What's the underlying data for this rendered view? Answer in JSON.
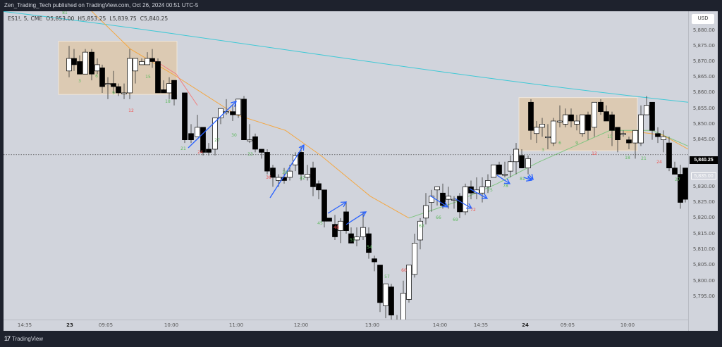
{
  "header": {
    "published_text": "Zen_Trading_Tech published on TradingView.com, Oct 26, 2024 00:51 UTC-5"
  },
  "legend": {
    "symbol": "ES1!, 5, CME",
    "open": "O5,853.00",
    "high": "H5,853.25",
    "low": "L5,839.75",
    "close": "C5,840.25"
  },
  "price_scale": {
    "currency": "USD",
    "labels": [
      "5,880.00",
      "5,875.00",
      "5,870.00",
      "5,865.00",
      "5,860.00",
      "5,855.00",
      "5,850.00",
      "5,845.00",
      "5,840.25",
      "5,835.00",
      "5,830.00",
      "5,825.00",
      "5,820.00",
      "5,815.00",
      "5,810.00",
      "5,805.00",
      "5,800.00",
      "5,795.00"
    ],
    "current_price": "5,840.25",
    "ghost_price": "5,835.00"
  },
  "time_scale": {
    "labels": [
      "14:35",
      "23",
      "09:05",
      "10:00",
      "11:00",
      "12:00",
      "13:00",
      "14:00",
      "14:35",
      "24",
      "09:05",
      "10:00"
    ]
  },
  "footer": {
    "brand": "TradingView",
    "logo": "17"
  },
  "colors": {
    "background": "#d1d4dc",
    "bull_body": "#ffffff",
    "bear_body": "#000000",
    "ma_fast": "#f4a742",
    "ma_fast_down": "#f08080",
    "ma_slow": "#3ec9d6",
    "ma_green": "#7fc47f",
    "box_fill": "#dccab3",
    "arrow": "#2962ff",
    "label_green": "#5cb85c",
    "label_red": "#ef5350"
  },
  "chart_data": {
    "type": "candlestick",
    "title": "ES1!, 5, CME",
    "xlabel": "",
    "ylabel": "USD",
    "ylim": [
      5792,
      5884
    ],
    "grid": false,
    "x_ticks": [
      "14:35",
      "23",
      "09:05",
      "10:00",
      "11:00",
      "12:00",
      "13:00",
      "14:00",
      "14:35",
      "24",
      "09:05",
      "10:00"
    ],
    "last_bar": {
      "open": 5853.0,
      "high": 5853.25,
      "low": 5839.75,
      "close": 5840.25
    },
    "current_price": 5840.25,
    "bar_count_labels": [
      {
        "n": "3",
        "color": "green"
      },
      {
        "n": "6",
        "color": "green"
      },
      {
        "n": "9",
        "color": "green"
      },
      {
        "n": "12",
        "color": "red"
      },
      {
        "n": "15",
        "color": "green"
      },
      {
        "n": "18",
        "color": "green"
      },
      {
        "n": "21",
        "color": "green"
      },
      {
        "n": "24",
        "color": "red"
      },
      {
        "n": "27",
        "color": "green"
      },
      {
        "n": "30",
        "color": "green"
      },
      {
        "n": "33",
        "color": "green"
      },
      {
        "n": "36",
        "color": "red"
      },
      {
        "n": "39",
        "color": "green"
      },
      {
        "n": "42",
        "color": "green"
      },
      {
        "n": "45",
        "color": "green"
      },
      {
        "n": "48",
        "color": "red"
      },
      {
        "n": "51",
        "color": "green"
      },
      {
        "n": "54",
        "color": "green"
      },
      {
        "n": "57",
        "color": "green"
      },
      {
        "n": "60",
        "color": "red"
      },
      {
        "n": "63",
        "color": "green"
      },
      {
        "n": "66",
        "color": "green"
      },
      {
        "n": "69",
        "color": "green"
      },
      {
        "n": "72",
        "color": "red"
      },
      {
        "n": "75",
        "color": "green"
      },
      {
        "n": "78",
        "color": "green"
      },
      {
        "n": "81",
        "color": "green"
      }
    ],
    "annotations": [
      "Opening range box day 23 (~5859-5876)",
      "Opening range box day 24 (~5841-5858)",
      "Blue trend-channel arrows on pullback legs"
    ],
    "series": [
      {
        "name": "EMA fast",
        "color": "#f4a742"
      },
      {
        "name": "MA slow",
        "color": "#3ec9d6"
      }
    ]
  }
}
